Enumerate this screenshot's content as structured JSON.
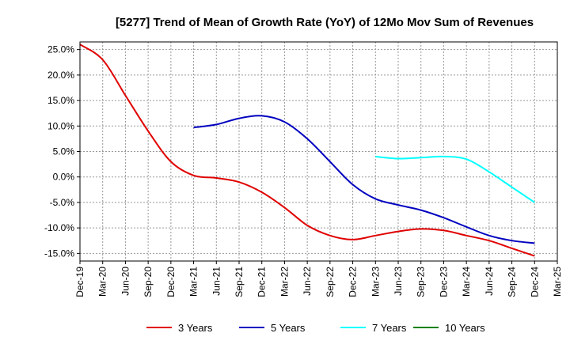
{
  "chart_data": {
    "type": "line",
    "title": "[5277]  Trend of Mean of Growth Rate (YoY) of 12Mo Mov Sum of Revenues",
    "xlabel": "",
    "ylabel": "",
    "ylim": [
      -16.5,
      26.5
    ],
    "yticks": [
      25,
      20,
      15,
      10,
      5,
      0,
      -5,
      -10,
      -15
    ],
    "ytick_labels": [
      "25.0%",
      "20.0%",
      "15.0%",
      "10.0%",
      "5.0%",
      "0.0%",
      "-5.0%",
      "-10.0%",
      "-15.0%"
    ],
    "x_range": [
      0,
      63
    ],
    "x_ticks": [
      {
        "label": "Dec-19",
        "x": 0
      },
      {
        "label": "Mar-20",
        "x": 3
      },
      {
        "label": "Jun-20",
        "x": 6
      },
      {
        "label": "Sep-20",
        "x": 9
      },
      {
        "label": "Dec-20",
        "x": 12
      },
      {
        "label": "Mar-21",
        "x": 15
      },
      {
        "label": "Jun-21",
        "x": 18
      },
      {
        "label": "Sep-21",
        "x": 21
      },
      {
        "label": "Dec-21",
        "x": 24
      },
      {
        "label": "Mar-22",
        "x": 27
      },
      {
        "label": "Jun-22",
        "x": 30
      },
      {
        "label": "Sep-22",
        "x": 33
      },
      {
        "label": "Dec-22",
        "x": 36
      },
      {
        "label": "Mar-23",
        "x": 39
      },
      {
        "label": "Jun-23",
        "x": 42
      },
      {
        "label": "Sep-23",
        "x": 45
      },
      {
        "label": "Dec-23",
        "x": 48
      },
      {
        "label": "Mar-24",
        "x": 51
      },
      {
        "label": "Jun-24",
        "x": 54
      },
      {
        "label": "Sep-24",
        "x": 57
      },
      {
        "label": "Dec-24",
        "x": 60
      },
      {
        "label": "Mar-25",
        "x": 63
      }
    ],
    "grid": true,
    "legend_position": "bottom",
    "series": [
      {
        "name": "3 Years",
        "color": "#e00000",
        "points": [
          [
            0,
            26
          ],
          [
            3,
            23
          ],
          [
            6,
            16
          ],
          [
            9,
            9
          ],
          [
            12,
            3
          ],
          [
            15,
            0.3
          ],
          [
            18,
            -0.2
          ],
          [
            21,
            -1
          ],
          [
            24,
            -3
          ],
          [
            27,
            -6
          ],
          [
            30,
            -9.5
          ],
          [
            33,
            -11.5
          ],
          [
            36,
            -12.3
          ],
          [
            39,
            -11.5
          ],
          [
            42,
            -10.7
          ],
          [
            45,
            -10.2
          ],
          [
            48,
            -10.5
          ],
          [
            51,
            -11.5
          ],
          [
            54,
            -12.5
          ],
          [
            57,
            -14
          ],
          [
            60,
            -15.5
          ]
        ]
      },
      {
        "name": "5 Years",
        "color": "#0000c0",
        "points": [
          [
            15,
            9.7
          ],
          [
            18,
            10.3
          ],
          [
            21,
            11.5
          ],
          [
            24,
            12
          ],
          [
            27,
            10.8
          ],
          [
            30,
            7.5
          ],
          [
            33,
            3
          ],
          [
            36,
            -1.5
          ],
          [
            39,
            -4.3
          ],
          [
            42,
            -5.5
          ],
          [
            45,
            -6.5
          ],
          [
            48,
            -8
          ],
          [
            51,
            -9.8
          ],
          [
            54,
            -11.5
          ],
          [
            57,
            -12.5
          ],
          [
            60,
            -13
          ]
        ]
      },
      {
        "name": "7 Years",
        "color": "#00ffff",
        "points": [
          [
            39,
            4
          ],
          [
            42,
            3.6
          ],
          [
            45,
            3.8
          ],
          [
            48,
            4
          ],
          [
            51,
            3.5
          ],
          [
            54,
            1
          ],
          [
            57,
            -2
          ],
          [
            60,
            -5
          ]
        ]
      },
      {
        "name": "10 Years",
        "color": "#008000",
        "points": []
      }
    ]
  }
}
